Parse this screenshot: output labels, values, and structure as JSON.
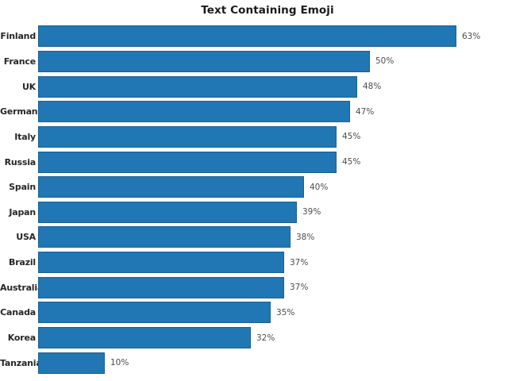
{
  "title": "Text Containing Emoji",
  "chart_data": {
    "type": "bar",
    "orientation": "horizontal",
    "title": "Text Containing Emoji",
    "xlabel": "",
    "ylabel": "",
    "categories": [
      "Finland",
      "France",
      "UK",
      "Germany",
      "Italy",
      "Russia",
      "Spain",
      "Japan",
      "USA",
      "Brazil",
      "Australia",
      "Canada",
      "Korea",
      "Tanzania"
    ],
    "values": [
      63,
      50,
      48,
      47,
      45,
      45,
      40,
      39,
      38,
      37,
      37,
      35,
      32,
      10
    ],
    "value_labels": [
      "63%",
      "50%",
      "48%",
      "47%",
      "45%",
      "45%",
      "40%",
      "39%",
      "38%",
      "37%",
      "37%",
      "35%",
      "32%",
      "10%"
    ],
    "xlim": [
      0,
      63
    ],
    "grid": false,
    "legend": false,
    "bar_color": "#2077b4",
    "bar_border_color": "#1a5f94",
    "category_label_color": "#262626",
    "value_label_color": "#4d4d4d",
    "title_color": "#1a1a1a",
    "background_color": "#ffffff"
  }
}
